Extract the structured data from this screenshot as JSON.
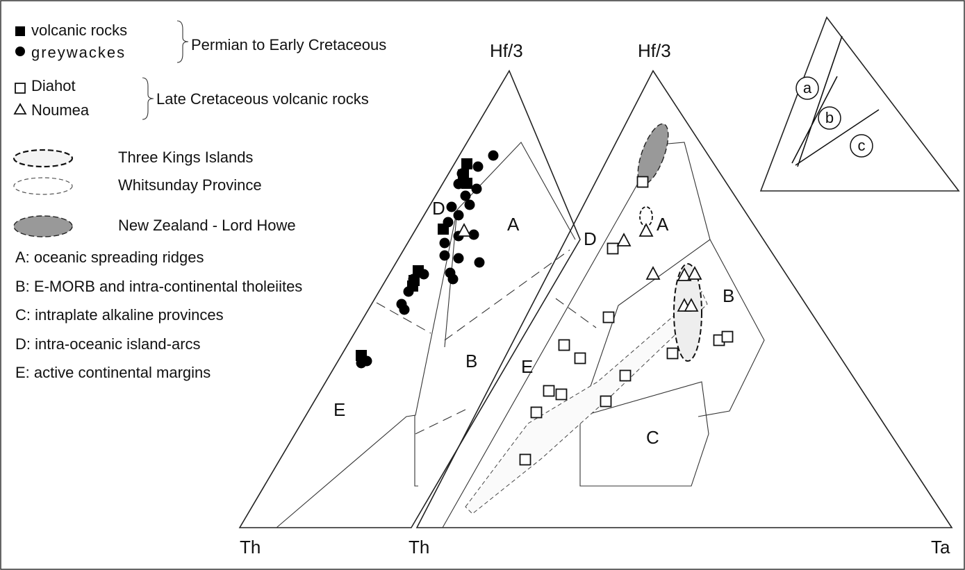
{
  "legend": {
    "volcanic": "volcanic rocks",
    "greywackes": "greywackes",
    "group1": "Permian to Early Cretaceous",
    "diahot": "Diahot",
    "noumea": "Noumea",
    "group2": "Late Cretaceous volcanic rocks",
    "three_kings": "Three Kings Islands",
    "whitsunday": "Whitsunday Province",
    "nz": "New Zealand - Lord Howe"
  },
  "fields": [
    "A: oceanic spreading ridges",
    "B: E-MORB and intra-continental tholeiites",
    "C: intraplate alkaline provinces",
    "D: intra-oceanic island-arcs",
    "E: active continental margins"
  ],
  "axes": {
    "left_top": "Hf/3",
    "right_top": "Hf/3",
    "left_bottom": "Th",
    "right_left": "Th",
    "right_right": "Ta"
  },
  "regions": {
    "left": [
      "A",
      "B",
      "D",
      "E"
    ],
    "right": [
      "A",
      "B",
      "C",
      "D",
      "E"
    ]
  },
  "inset": [
    "a",
    "b",
    "c"
  ]
}
